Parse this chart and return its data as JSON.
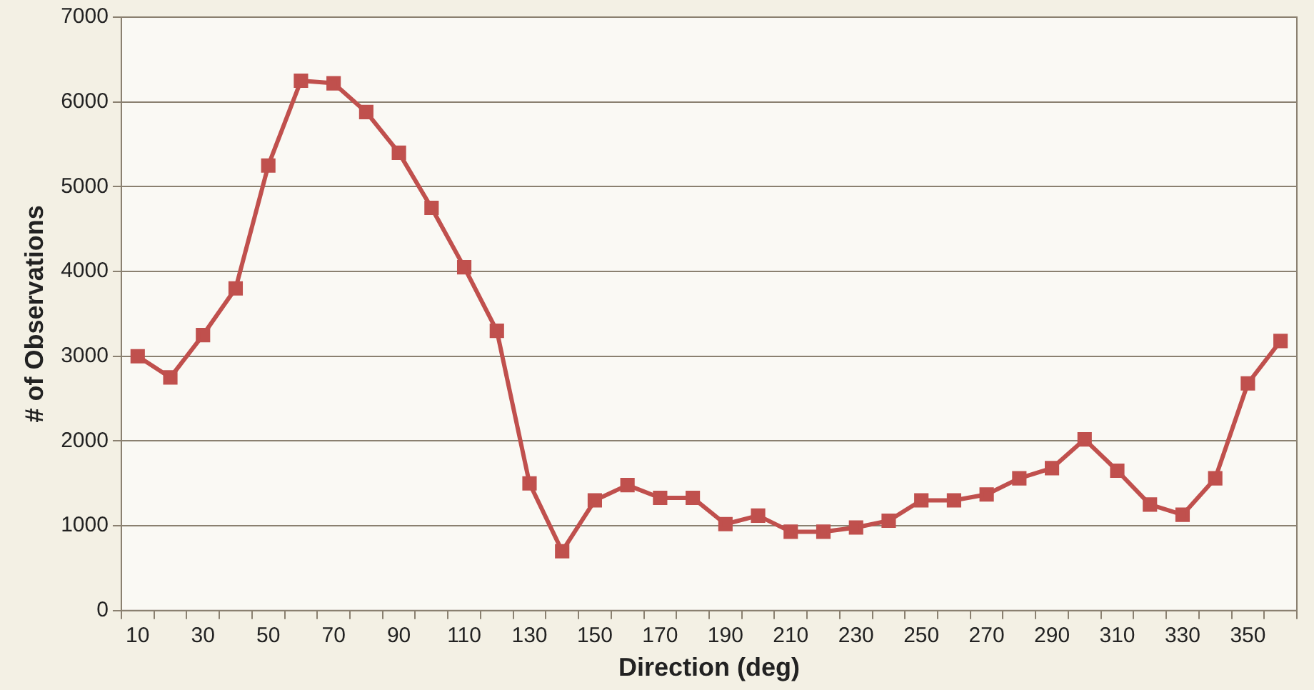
{
  "chart_data": {
    "type": "line",
    "xlabel": "Direction (deg)",
    "ylabel": "# of Observations",
    "categories": [
      "10",
      null,
      "30",
      null,
      "50",
      null,
      "70",
      null,
      "90",
      null,
      "110",
      null,
      "130",
      null,
      "150",
      null,
      "170",
      null,
      "190",
      null,
      "210",
      null,
      "230",
      null,
      "250",
      null,
      "270",
      null,
      "290",
      null,
      "310",
      null,
      "330",
      null,
      "350",
      null
    ],
    "series": [
      {
        "color": "#c0504d",
        "values": [
          3000,
          2750,
          3250,
          3800,
          5250,
          6250,
          6220,
          5880,
          5400,
          4750,
          4050,
          3300,
          1500,
          700,
          1300,
          1480,
          1330,
          1330,
          1020,
          1120,
          930,
          930,
          980,
          1060,
          1300,
          1300,
          1370,
          1560,
          1680,
          2020,
          1650,
          1250,
          1130,
          1560,
          2680,
          3180
        ]
      }
    ],
    "ylim": [
      0,
      7000
    ],
    "yticks": [
      0,
      1000,
      2000,
      3000,
      4000,
      5000,
      6000,
      7000
    ],
    "grid": "y",
    "legend": false,
    "marker": "square",
    "line_style": "solid"
  }
}
